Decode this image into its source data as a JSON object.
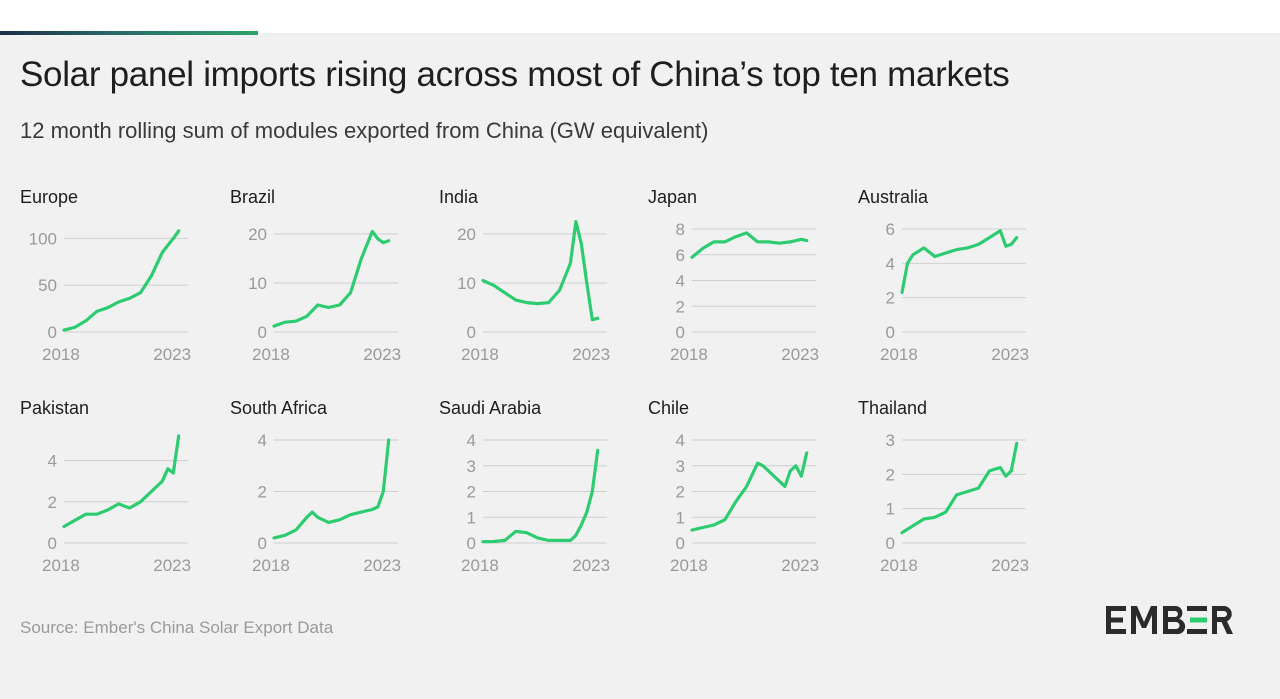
{
  "title": "Solar panel imports rising across most of China’s top ten markets",
  "subtitle": "12 month rolling sum of modules exported from China (GW equivalent)",
  "source": "Source: Ember's China Solar Export Data",
  "logo": "EMBER",
  "colors": {
    "line": "#2ecc71",
    "axis_text": "#9a9a9a",
    "grid": "#cfcfcf",
    "title": "#1e1e1e"
  },
  "chart_data": [
    {
      "type": "line",
      "title": "Europe",
      "ylim": [
        0,
        110
      ],
      "yticks": [
        0,
        50,
        100
      ],
      "xlim": [
        2018,
        2023.4
      ],
      "xticks": [
        2018,
        2023
      ],
      "x": [
        2018.0,
        2018.5,
        2019.0,
        2019.5,
        2020.0,
        2020.5,
        2021.0,
        2021.5,
        2022.0,
        2022.5,
        2023.0,
        2023.25
      ],
      "values": [
        2,
        5,
        12,
        22,
        26,
        32,
        36,
        42,
        60,
        85,
        100,
        108
      ]
    },
    {
      "type": "line",
      "title": "Brazil",
      "ylim": [
        0,
        21
      ],
      "yticks": [
        0,
        10,
        20
      ],
      "xlim": [
        2018,
        2023.4
      ],
      "xticks": [
        2018,
        2023
      ],
      "x": [
        2018.0,
        2018.5,
        2019.0,
        2019.5,
        2020.0,
        2020.5,
        2021.0,
        2021.5,
        2022.0,
        2022.5,
        2022.75,
        2023.0,
        2023.25
      ],
      "values": [
        1.2,
        2.0,
        2.2,
        3.2,
        5.5,
        5.0,
        5.5,
        8.0,
        15.0,
        20.5,
        19.0,
        18.2,
        18.6
      ]
    },
    {
      "type": "line",
      "title": "India",
      "ylim": [
        0,
        21
      ],
      "yticks": [
        0,
        10,
        20
      ],
      "xlim": [
        2018,
        2023.4
      ],
      "xticks": [
        2018,
        2023
      ],
      "x": [
        2018.0,
        2018.5,
        2019.0,
        2019.5,
        2020.0,
        2020.5,
        2021.0,
        2021.5,
        2022.0,
        2022.25,
        2022.5,
        2022.75,
        2023.0,
        2023.25
      ],
      "values": [
        10.5,
        9.5,
        8.0,
        6.5,
        6.0,
        5.8,
        6.0,
        8.5,
        14.0,
        22.5,
        18.0,
        10.0,
        2.5,
        2.8
      ]
    },
    {
      "type": "line",
      "title": "Japan",
      "ylim": [
        0,
        8
      ],
      "yticks": [
        0,
        2,
        4,
        6,
        8
      ],
      "xlim": [
        2018,
        2023.4
      ],
      "xticks": [
        2018,
        2023
      ],
      "x": [
        2018.0,
        2018.5,
        2019.0,
        2019.5,
        2020.0,
        2020.5,
        2021.0,
        2021.5,
        2022.0,
        2022.5,
        2023.0,
        2023.25
      ],
      "values": [
        5.8,
        6.5,
        7.0,
        7.0,
        7.4,
        7.7,
        7.0,
        7.0,
        6.9,
        7.0,
        7.2,
        7.1
      ]
    },
    {
      "type": "line",
      "title": "Australia",
      "ylim": [
        0,
        6
      ],
      "yticks": [
        0,
        2,
        4,
        6
      ],
      "xlim": [
        2018,
        2023.4
      ],
      "xticks": [
        2018,
        2023
      ],
      "x": [
        2018.0,
        2018.25,
        2018.5,
        2019.0,
        2019.5,
        2020.0,
        2020.5,
        2021.0,
        2021.5,
        2022.0,
        2022.5,
        2022.75,
        2023.0,
        2023.25
      ],
      "values": [
        2.3,
        4.0,
        4.5,
        4.9,
        4.4,
        4.6,
        4.8,
        4.9,
        5.1,
        5.5,
        5.9,
        5.0,
        5.1,
        5.5
      ]
    },
    {
      "type": "line",
      "title": "Pakistan",
      "ylim": [
        0,
        5
      ],
      "yticks": [
        0,
        2,
        4
      ],
      "xlim": [
        2018,
        2023.4
      ],
      "xticks": [
        2018,
        2023
      ],
      "x": [
        2018.0,
        2018.5,
        2019.0,
        2019.5,
        2020.0,
        2020.5,
        2021.0,
        2021.5,
        2022.0,
        2022.5,
        2022.75,
        2023.0,
        2023.25
      ],
      "values": [
        0.8,
        1.1,
        1.4,
        1.4,
        1.6,
        1.9,
        1.7,
        2.0,
        2.5,
        3.0,
        3.6,
        3.4,
        5.2
      ]
    },
    {
      "type": "line",
      "title": "South Africa",
      "ylim": [
        0,
        4
      ],
      "yticks": [
        0,
        2,
        4
      ],
      "xlim": [
        2018,
        2023.4
      ],
      "xticks": [
        2018,
        2023
      ],
      "x": [
        2018.0,
        2018.5,
        2019.0,
        2019.5,
        2019.75,
        2020.0,
        2020.5,
        2021.0,
        2021.5,
        2022.0,
        2022.5,
        2022.75,
        2023.0,
        2023.25
      ],
      "values": [
        0.2,
        0.3,
        0.5,
        1.0,
        1.2,
        1.0,
        0.8,
        0.9,
        1.1,
        1.2,
        1.3,
        1.4,
        2.0,
        4.0
      ]
    },
    {
      "type": "line",
      "title": "Saudi Arabia",
      "ylim": [
        0,
        4
      ],
      "yticks": [
        0,
        1,
        2,
        3,
        4
      ],
      "xlim": [
        2018,
        2023.4
      ],
      "xticks": [
        2018,
        2023
      ],
      "x": [
        2018.0,
        2018.5,
        2019.0,
        2019.5,
        2020.0,
        2020.5,
        2021.0,
        2021.5,
        2022.0,
        2022.25,
        2022.5,
        2022.75,
        2023.0,
        2023.25
      ],
      "values": [
        0.05,
        0.06,
        0.1,
        0.45,
        0.4,
        0.2,
        0.1,
        0.1,
        0.1,
        0.3,
        0.7,
        1.2,
        2.0,
        3.6
      ]
    },
    {
      "type": "line",
      "title": "Chile",
      "ylim": [
        0,
        4
      ],
      "yticks": [
        0,
        1,
        2,
        3,
        4
      ],
      "xlim": [
        2018,
        2023.4
      ],
      "xticks": [
        2018,
        2023
      ],
      "x": [
        2018.0,
        2018.5,
        2019.0,
        2019.5,
        2020.0,
        2020.5,
        2021.0,
        2021.25,
        2021.5,
        2021.75,
        2022.0,
        2022.25,
        2022.5,
        2022.75,
        2023.0,
        2023.25
      ],
      "values": [
        0.5,
        0.6,
        0.7,
        0.9,
        1.6,
        2.2,
        3.1,
        3.0,
        2.8,
        2.6,
        2.4,
        2.2,
        2.8,
        3.0,
        2.6,
        3.5
      ]
    },
    {
      "type": "line",
      "title": "Thailand",
      "ylim": [
        0,
        3
      ],
      "yticks": [
        0,
        1,
        2,
        3
      ],
      "xlim": [
        2018,
        2023.4
      ],
      "xticks": [
        2018,
        2023
      ],
      "x": [
        2018.0,
        2018.5,
        2019.0,
        2019.5,
        2020.0,
        2020.5,
        2021.0,
        2021.5,
        2022.0,
        2022.5,
        2022.75,
        2023.0,
        2023.25
      ],
      "values": [
        0.3,
        0.5,
        0.7,
        0.75,
        0.9,
        1.4,
        1.5,
        1.6,
        2.1,
        2.2,
        1.95,
        2.1,
        2.9
      ]
    }
  ]
}
